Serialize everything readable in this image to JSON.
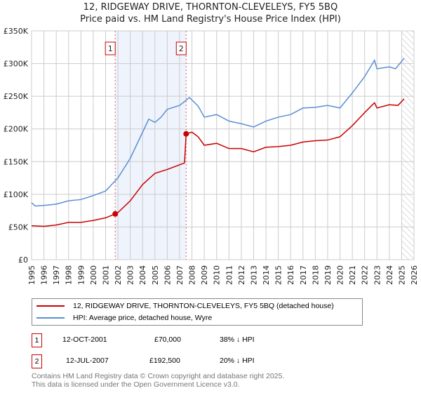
{
  "chart_data": {
    "type": "line",
    "title": "12, RIDGEWAY DRIVE, THORNTON-CLEVELEYS, FY5 5BQ",
    "subtitle": "Price paid vs. HM Land Registry's House Price Index (HPI)",
    "xlim": [
      1995,
      2026
    ],
    "ylim": [
      0,
      350000
    ],
    "yticks": [
      {
        "v": 0,
        "label": "£0"
      },
      {
        "v": 50000,
        "label": "£50K"
      },
      {
        "v": 100000,
        "label": "£100K"
      },
      {
        "v": 150000,
        "label": "£150K"
      },
      {
        "v": 200000,
        "label": "£200K"
      },
      {
        "v": 250000,
        "label": "£250K"
      },
      {
        "v": 300000,
        "label": "£300K"
      },
      {
        "v": 350000,
        "label": "£350K"
      }
    ],
    "xticks": [
      "1995",
      "1996",
      "1997",
      "1998",
      "1999",
      "2000",
      "2001",
      "2002",
      "2003",
      "2004",
      "2005",
      "2006",
      "2007",
      "2008",
      "2009",
      "2010",
      "2011",
      "2012",
      "2013",
      "2014",
      "2015",
      "2016",
      "2017",
      "2018",
      "2019",
      "2020",
      "2021",
      "2022",
      "2023",
      "2024",
      "2025",
      "2026"
    ],
    "grid": true,
    "shaded_range": [
      2001.78,
      2007.53
    ],
    "future_hatch_from": 2025.0,
    "series": [
      {
        "name": "12, RIDGEWAY DRIVE, THORNTON-CLEVELEYS, FY5 5BQ (detached house)",
        "color": "#cc0000",
        "x": [
          1995,
          1996,
          1997,
          1998,
          1999,
          2000,
          2001,
          2001.78,
          2002,
          2003,
          2004,
          2005,
          2006,
          2007.4,
          2007.53,
          2008,
          2008.5,
          2009,
          2010,
          2011,
          2012,
          2013,
          2014,
          2015,
          2016,
          2017,
          2018,
          2019,
          2020,
          2021,
          2022,
          2022.8,
          2023,
          2024,
          2024.7,
          2025.2
        ],
        "y": [
          52000,
          51000,
          53000,
          57000,
          57000,
          60000,
          64000,
          70000,
          72000,
          90000,
          115000,
          132000,
          138000,
          148000,
          192500,
          195000,
          188000,
          175000,
          178000,
          170000,
          170000,
          165000,
          172000,
          173000,
          175000,
          180000,
          182000,
          183000,
          188000,
          205000,
          225000,
          240000,
          232000,
          237000,
          236000,
          246000
        ]
      },
      {
        "name": "HPI: Average price, detached house, Wyre",
        "color": "#5b8fd6",
        "x": [
          1995,
          1995.3,
          1996,
          1997,
          1998,
          1999,
          2000,
          2001,
          2002,
          2003,
          2004,
          2004.5,
          2005,
          2005.5,
          2006,
          2007,
          2007.8,
          2008.5,
          2009,
          2010,
          2011,
          2012,
          2013,
          2014,
          2015,
          2016,
          2017,
          2018,
          2019,
          2020,
          2021,
          2022,
          2022.8,
          2023,
          2024,
          2024.5,
          2025.2
        ],
        "y": [
          87000,
          82000,
          83000,
          85000,
          90000,
          92000,
          98000,
          105000,
          125000,
          155000,
          195000,
          215000,
          210000,
          218000,
          230000,
          236000,
          248000,
          235000,
          218000,
          222000,
          212000,
          208000,
          203000,
          212000,
          218000,
          222000,
          232000,
          233000,
          236000,
          232000,
          255000,
          280000,
          305000,
          292000,
          295000,
          292000,
          308000
        ]
      }
    ],
    "sales": [
      {
        "id": "1",
        "date": "12-OCT-2001",
        "x": 2001.78,
        "price": 70000,
        "price_label": "£70,000",
        "hpi_note": "38% ↓ HPI"
      },
      {
        "id": "2",
        "date": "12-JUL-2007",
        "x": 2007.53,
        "price": 192500,
        "price_label": "£192,500",
        "hpi_note": "20% ↓ HPI"
      }
    ]
  },
  "footer": {
    "line1": "Contains HM Land Registry data © Crown copyright and database right 2025.",
    "line2": "This data is licensed under the Open Government Licence v3.0."
  }
}
